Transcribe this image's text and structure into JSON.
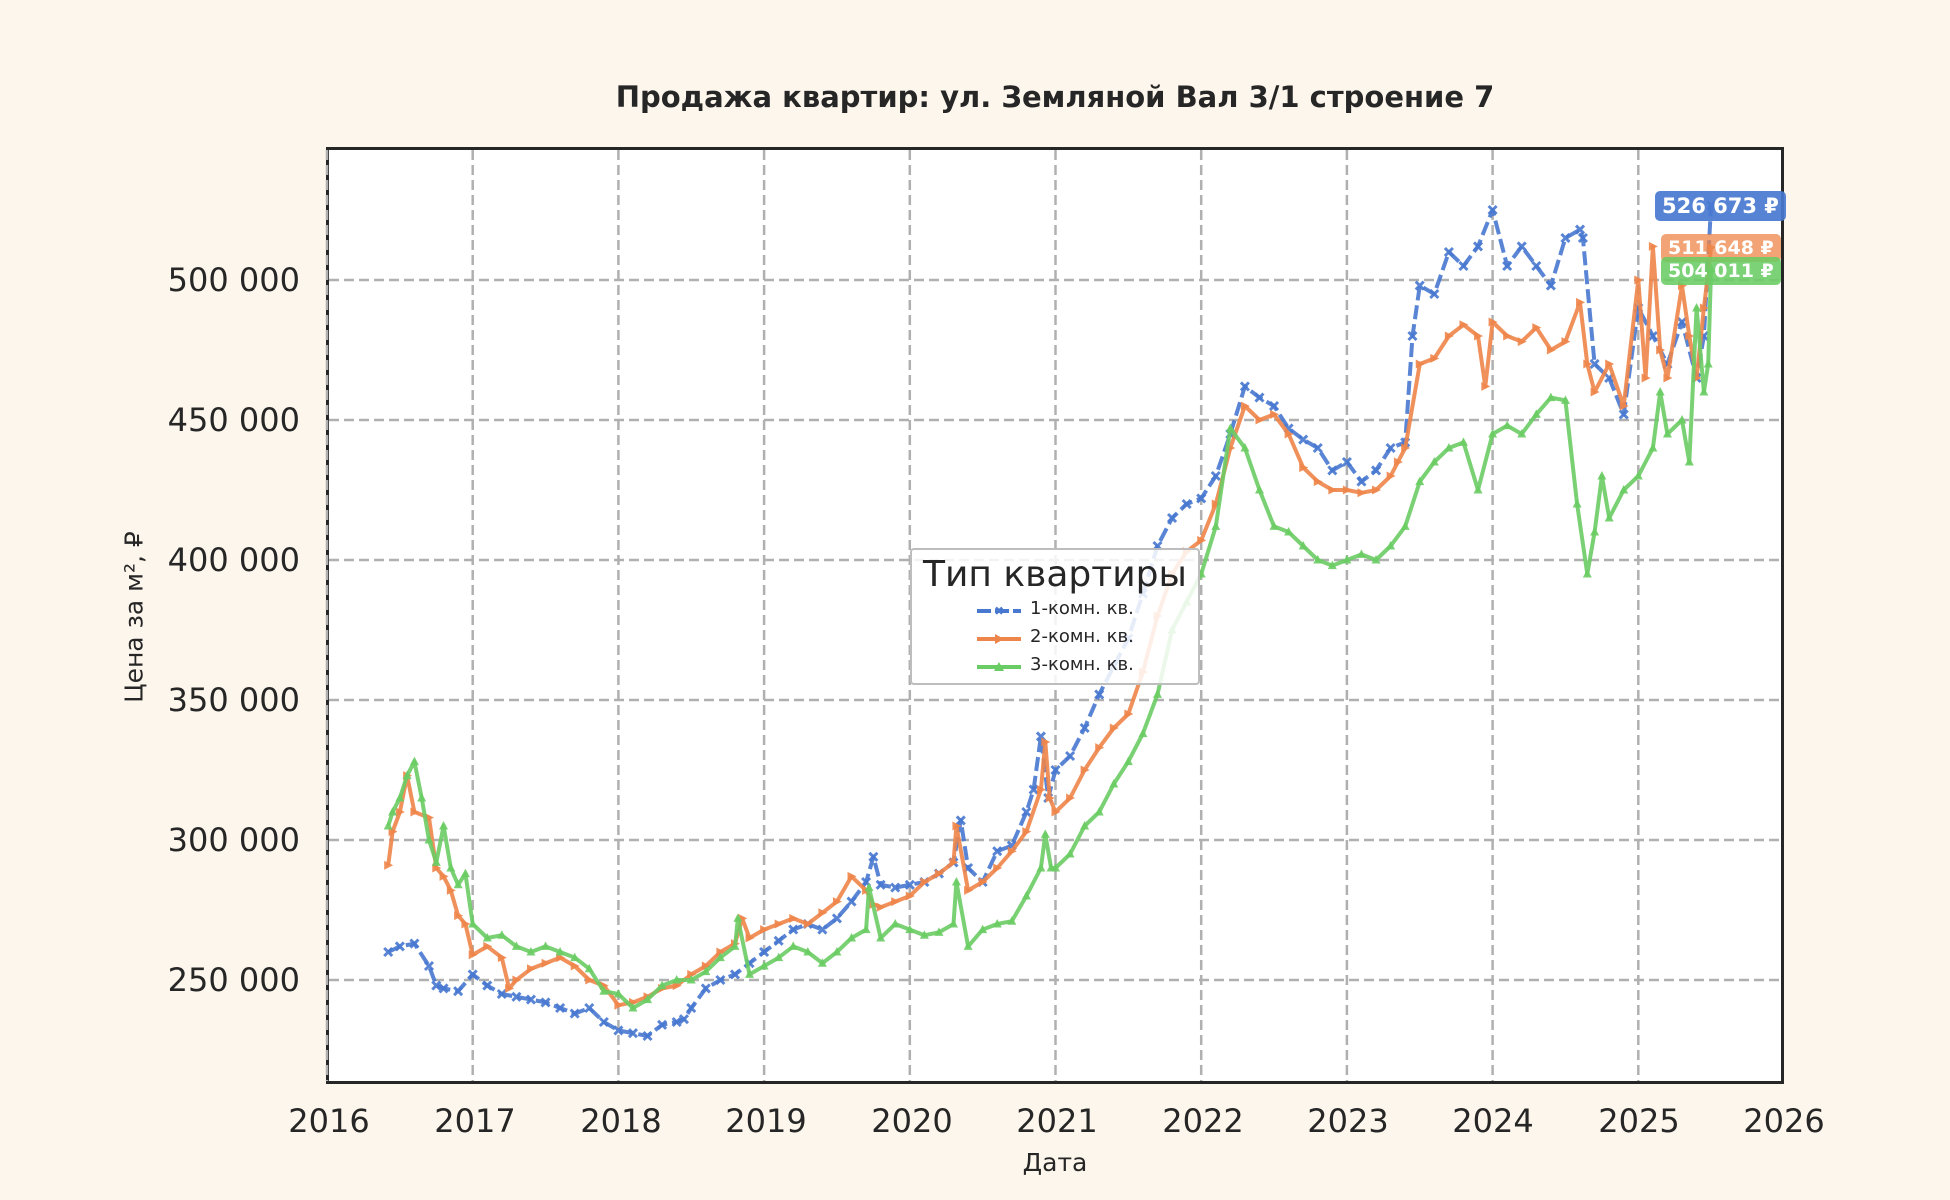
{
  "chart": {
    "title": "Продажа квартир: ул. Земляной Вал 3/1 строение 7",
    "xlabel": "Дата",
    "ylabel": "Цена за м², ₽",
    "yticks": [
      {
        "label": "250 000",
        "value": 250000
      },
      {
        "label": "300 000",
        "value": 300000
      },
      {
        "label": "350 000",
        "value": 350000
      },
      {
        "label": "400 000",
        "value": 400000
      },
      {
        "label": "450 000",
        "value": 450000
      },
      {
        "label": "500 000",
        "value": 500000
      }
    ],
    "xticks": [
      {
        "label": "2016",
        "value": 2016
      },
      {
        "label": "2017",
        "value": 2017
      },
      {
        "label": "2018",
        "value": 2018
      },
      {
        "label": "2019",
        "value": 2019
      },
      {
        "label": "2020",
        "value": 2020
      },
      {
        "label": "2021",
        "value": 2021
      },
      {
        "label": "2022",
        "value": 2022
      },
      {
        "label": "2023",
        "value": 2023
      },
      {
        "label": "2024",
        "value": 2024
      },
      {
        "label": "2025",
        "value": 2025
      },
      {
        "label": "2026",
        "value": 2026
      }
    ],
    "legend": {
      "title": "Тип квартиры",
      "items": [
        {
          "label": "1-комн. кв.",
          "color": "#4878d0",
          "style": "dashed"
        },
        {
          "label": "2-комн. кв.",
          "color": "#ee854a",
          "style": "solid"
        },
        {
          "label": "3-комн. кв.",
          "color": "#6acc64",
          "style": "solid"
        }
      ]
    },
    "badges": [
      {
        "label": "526 673 ₽",
        "color": "#4878d0"
      },
      {
        "label": "511 648 ₽",
        "color": "#ee854a"
      },
      {
        "label": "504 011 ₽",
        "color": "#6acc64"
      }
    ],
    "colors": {
      "background": "#fdf6ec",
      "plot_bg": "#ffffff",
      "grid": "#b0b0b0",
      "one_room": "#4878d0",
      "two_room": "#ee854a",
      "three_room": "#6acc64"
    }
  },
  "chart_data": {
    "type": "line",
    "title": "Продажа квартир: ул. Земляной Вал 3/1 строение 7",
    "xlabel": "Дата",
    "ylabel": "Цена за м², ₽",
    "xlim": [
      2016,
      2026
    ],
    "ylim": [
      215000,
      545000
    ],
    "grid": true,
    "legend_position": "center",
    "legend_title": "Тип квартиры",
    "series": [
      {
        "name": "1-комн. кв.",
        "color": "#4878d0",
        "linestyle": "dashed",
        "marker": "x",
        "x": [
          2016.42,
          2016.5,
          2016.6,
          2016.7,
          2016.75,
          2016.8,
          2016.9,
          2017.0,
          2017.1,
          2017.2,
          2017.3,
          2017.4,
          2017.5,
          2017.6,
          2017.7,
          2017.8,
          2017.9,
          2018.0,
          2018.1,
          2018.2,
          2018.3,
          2018.4,
          2018.45,
          2018.5,
          2018.6,
          2018.7,
          2018.8,
          2018.9,
          2019.0,
          2019.1,
          2019.2,
          2019.3,
          2019.4,
          2019.5,
          2019.6,
          2019.7,
          2019.75,
          2019.8,
          2019.9,
          2020.0,
          2020.1,
          2020.2,
          2020.3,
          2020.35,
          2020.4,
          2020.5,
          2020.6,
          2020.7,
          2020.8,
          2020.85,
          2020.9,
          2020.95,
          2021.0,
          2021.1,
          2021.2,
          2021.3,
          2021.4,
          2021.5,
          2021.6,
          2021.7,
          2021.8,
          2021.9,
          2022.0,
          2022.1,
          2022.2,
          2022.3,
          2022.4,
          2022.5,
          2022.6,
          2022.7,
          2022.8,
          2022.9,
          2023.0,
          2023.1,
          2023.2,
          2023.3,
          2023.4,
          2023.45,
          2023.5,
          2023.6,
          2023.7,
          2023.8,
          2023.9,
          2024.0,
          2024.1,
          2024.2,
          2024.3,
          2024.4,
          2024.5,
          2024.6,
          2024.62,
          2024.7,
          2024.8,
          2024.9,
          2025.0,
          2025.1,
          2025.2,
          2025.3,
          2025.4,
          2025.45,
          2025.5
        ],
        "y": [
          260000,
          262000,
          263000,
          255000,
          248000,
          247000,
          246000,
          252000,
          248000,
          245000,
          244000,
          243000,
          242000,
          240000,
          238000,
          240000,
          235000,
          232000,
          231000,
          230000,
          234000,
          235000,
          236000,
          240000,
          247000,
          250000,
          252000,
          256000,
          260000,
          264000,
          268000,
          270000,
          268000,
          272000,
          278000,
          285000,
          294000,
          284000,
          283000,
          284000,
          285000,
          288000,
          292000,
          307000,
          290000,
          285000,
          296000,
          298000,
          310000,
          318000,
          337000,
          315000,
          325000,
          330000,
          340000,
          352000,
          362000,
          372000,
          388000,
          405000,
          415000,
          420000,
          422000,
          430000,
          445000,
          462000,
          458000,
          455000,
          447000,
          443000,
          440000,
          432000,
          435000,
          428000,
          432000,
          440000,
          442000,
          480000,
          498000,
          495000,
          510000,
          505000,
          512000,
          525000,
          505000,
          512000,
          505000,
          498000,
          515000,
          518000,
          515000,
          470000,
          465000,
          452000,
          490000,
          480000,
          470000,
          485000,
          465000,
          480000,
          526673
        ]
      },
      {
        "name": "2-комн. кв.",
        "color": "#ee854a",
        "linestyle": "solid",
        "marker": ">",
        "x": [
          2016.42,
          2016.45,
          2016.5,
          2016.55,
          2016.6,
          2016.7,
          2016.75,
          2016.8,
          2016.85,
          2016.9,
          2016.95,
          2017.0,
          2017.1,
          2017.2,
          2017.25,
          2017.3,
          2017.4,
          2017.5,
          2017.6,
          2017.7,
          2017.8,
          2017.9,
          2018.0,
          2018.1,
          2018.2,
          2018.3,
          2018.4,
          2018.5,
          2018.6,
          2018.7,
          2018.8,
          2018.85,
          2018.9,
          2019.0,
          2019.1,
          2019.2,
          2019.3,
          2019.4,
          2019.5,
          2019.6,
          2019.7,
          2019.75,
          2019.8,
          2019.9,
          2020.0,
          2020.1,
          2020.2,
          2020.3,
          2020.32,
          2020.4,
          2020.5,
          2020.6,
          2020.7,
          2020.8,
          2020.9,
          2020.93,
          2020.96,
          2021.0,
          2021.1,
          2021.2,
          2021.3,
          2021.4,
          2021.5,
          2021.6,
          2021.7,
          2021.8,
          2021.9,
          2022.0,
          2022.1,
          2022.2,
          2022.3,
          2022.4,
          2022.5,
          2022.6,
          2022.7,
          2022.8,
          2022.9,
          2023.0,
          2023.1,
          2023.2,
          2023.3,
          2023.35,
          2023.4,
          2023.5,
          2023.6,
          2023.7,
          2023.8,
          2023.9,
          2023.95,
          2024.0,
          2024.1,
          2024.2,
          2024.3,
          2024.4,
          2024.5,
          2024.6,
          2024.65,
          2024.7,
          2024.8,
          2024.9,
          2025.0,
          2025.05,
          2025.1,
          2025.15,
          2025.2,
          2025.3,
          2025.35,
          2025.4,
          2025.45,
          2025.5
        ],
        "y": [
          291000,
          303000,
          310000,
          323000,
          310000,
          308000,
          290000,
          287000,
          282000,
          273000,
          270000,
          259000,
          262000,
          258000,
          247000,
          250000,
          254000,
          256000,
          258000,
          255000,
          250000,
          248000,
          241000,
          242000,
          244000,
          247000,
          248000,
          252000,
          255000,
          260000,
          263000,
          272000,
          265000,
          268000,
          270000,
          272000,
          270000,
          274000,
          278000,
          287000,
          282000,
          277000,
          276000,
          278000,
          280000,
          285000,
          288000,
          292000,
          305000,
          282000,
          285000,
          290000,
          296000,
          303000,
          318000,
          335000,
          315000,
          310000,
          315000,
          325000,
          333000,
          340000,
          345000,
          360000,
          380000,
          395000,
          403000,
          407000,
          420000,
          440000,
          455000,
          450000,
          452000,
          445000,
          433000,
          428000,
          425000,
          425000,
          424000,
          425000,
          430000,
          435000,
          440000,
          470000,
          472000,
          480000,
          484000,
          480000,
          462000,
          485000,
          480000,
          478000,
          483000,
          475000,
          478000,
          492000,
          470000,
          460000,
          470000,
          455000,
          500000,
          465000,
          512000,
          475000,
          465000,
          498000,
          480000,
          465000,
          490000,
          511648
        ]
      },
      {
        "name": "3-комн. кв.",
        "color": "#6acc64",
        "linestyle": "solid",
        "marker": "^",
        "x": [
          2016.42,
          2016.45,
          2016.5,
          2016.55,
          2016.6,
          2016.65,
          2016.7,
          2016.75,
          2016.8,
          2016.85,
          2016.9,
          2016.95,
          2017.0,
          2017.1,
          2017.2,
          2017.3,
          2017.4,
          2017.5,
          2017.6,
          2017.7,
          2017.8,
          2017.9,
          2018.0,
          2018.1,
          2018.2,
          2018.3,
          2018.4,
          2018.5,
          2018.6,
          2018.7,
          2018.8,
          2018.82,
          2018.9,
          2019.0,
          2019.1,
          2019.2,
          2019.3,
          2019.4,
          2019.5,
          2019.6,
          2019.7,
          2019.72,
          2019.8,
          2019.9,
          2020.0,
          2020.1,
          2020.2,
          2020.3,
          2020.32,
          2020.4,
          2020.5,
          2020.6,
          2020.7,
          2020.8,
          2020.9,
          2020.93,
          2020.97,
          2021.0,
          2021.1,
          2021.2,
          2021.3,
          2021.4,
          2021.5,
          2021.6,
          2021.7,
          2021.8,
          2021.9,
          2022.0,
          2022.1,
          2022.2,
          2022.3,
          2022.4,
          2022.5,
          2022.6,
          2022.7,
          2022.8,
          2022.9,
          2023.0,
          2023.1,
          2023.2,
          2023.3,
          2023.4,
          2023.5,
          2023.6,
          2023.7,
          2023.8,
          2023.9,
          2024.0,
          2024.1,
          2024.2,
          2024.3,
          2024.4,
          2024.5,
          2024.58,
          2024.65,
          2024.7,
          2024.75,
          2024.8,
          2024.9,
          2025.0,
          2025.1,
          2025.15,
          2025.2,
          2025.3,
          2025.35,
          2025.4,
          2025.45,
          2025.48,
          2025.5
        ],
        "y": [
          305000,
          310000,
          315000,
          323000,
          328000,
          315000,
          300000,
          292000,
          305000,
          290000,
          284000,
          288000,
          270000,
          265000,
          266000,
          262000,
          260000,
          262000,
          260000,
          258000,
          254000,
          246000,
          245000,
          240000,
          243000,
          248000,
          250000,
          250000,
          253000,
          258000,
          262000,
          272000,
          252000,
          255000,
          258000,
          262000,
          260000,
          256000,
          260000,
          265000,
          268000,
          283000,
          265000,
          270000,
          268000,
          266000,
          267000,
          270000,
          285000,
          262000,
          268000,
          270000,
          271000,
          280000,
          290000,
          302000,
          290000,
          290000,
          295000,
          305000,
          310000,
          320000,
          328000,
          338000,
          352000,
          375000,
          385000,
          395000,
          412000,
          447000,
          440000,
          425000,
          412000,
          410000,
          405000,
          400000,
          398000,
          400000,
          402000,
          400000,
          405000,
          412000,
          428000,
          435000,
          440000,
          442000,
          425000,
          445000,
          448000,
          445000,
          452000,
          458000,
          457000,
          420000,
          395000,
          410000,
          430000,
          415000,
          425000,
          430000,
          440000,
          460000,
          445000,
          450000,
          435000,
          490000,
          460000,
          470000,
          504011
        ]
      }
    ],
    "annotations": [
      {
        "text": "526 673 ₽",
        "series": "1-комн. кв."
      },
      {
        "text": "511 648 ₽",
        "series": "2-комн. кв."
      },
      {
        "text": "504 011 ₽",
        "series": "3-комн. кв."
      }
    ]
  }
}
